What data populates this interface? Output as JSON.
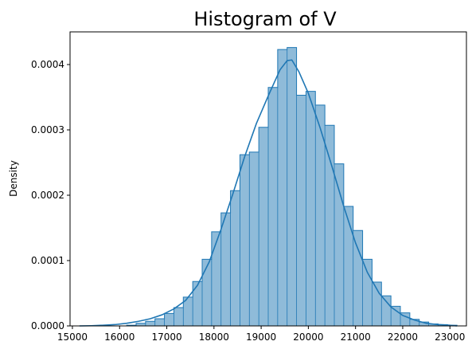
{
  "chart_data": {
    "type": "bar",
    "title": "Histogram of V",
    "xlabel": "",
    "ylabel": "Density",
    "xlim": [
      14950,
      23350
    ],
    "ylim": [
      0,
      0.00045
    ],
    "x_ticks": [
      15000,
      16000,
      17000,
      18000,
      19000,
      20000,
      21000,
      22000,
      23000
    ],
    "x_tick_labels": [
      "15000",
      "16000",
      "17000",
      "18000",
      "19000",
      "20000",
      "21000",
      "22000",
      "23000"
    ],
    "y_ticks": [
      0,
      0.0001,
      0.0002,
      0.0003,
      0.0004
    ],
    "y_tick_labels": [
      "0.0000",
      "0.0001",
      "0.0002",
      "0.0003",
      "0.0004"
    ],
    "grid": false,
    "legend": "none",
    "colors": {
      "bar_fill": "#1f77b4",
      "bar_fill_opacity": 0.5,
      "line": "#1f77b4"
    },
    "bins": {
      "edges": [
        15150,
        15350,
        15550,
        15750,
        15950,
        16150,
        16350,
        16550,
        16750,
        16950,
        17150,
        17350,
        17550,
        17750,
        17950,
        18150,
        18350,
        18550,
        18750,
        18950,
        19150,
        19350,
        19550,
        19750,
        19950,
        20150,
        20350,
        20550,
        20750,
        20950,
        21150,
        21350,
        21550,
        21750,
        21950,
        22150,
        22350,
        22550,
        22750,
        22950,
        23150
      ],
      "density": [
        0.0,
        0.0,
        0.0,
        0.0,
        0.0,
        1e-06,
        4e-06,
        7e-06,
        1.1e-05,
        1.9e-05,
        2.8e-05,
        4.4e-05,
        6.8e-05,
        0.000102,
        0.000144,
        0.000173,
        0.000207,
        0.000262,
        0.000266,
        0.000304,
        0.000365,
        0.000423,
        0.000426,
        0.000353,
        0.000359,
        0.000338,
        0.000307,
        0.000248,
        0.000183,
        0.000146,
        0.000102,
        6.7e-05,
        4.6e-05,
        3e-05,
        2e-05,
        1e-05,
        6e-06,
        3e-06,
        2e-06,
        1e-06
      ]
    },
    "kde": {
      "x": [
        15150,
        15400,
        15650,
        15900,
        16150,
        16400,
        16650,
        16900,
        17150,
        17400,
        17650,
        17900,
        18150,
        18400,
        18650,
        18900,
        19150,
        19400,
        19550,
        19650,
        19800,
        20000,
        20250,
        20500,
        20750,
        21000,
        21250,
        21500,
        21750,
        22000,
        22250,
        22500,
        22750,
        23000,
        23150
      ],
      "y": [
        0.0,
        3e-07,
        1e-06,
        2e-06,
        4e-06,
        7e-06,
        1.1e-05,
        1.7e-05,
        2.6e-05,
        3.9e-05,
        6.2e-05,
        9.8e-05,
        0.000148,
        0.000202,
        0.000259,
        0.00031,
        0.000352,
        0.000392,
        0.000406,
        0.000407,
        0.000389,
        0.000356,
        0.000303,
        0.000244,
        0.000183,
        0.000127,
        8.2e-05,
        5e-05,
        2.9e-05,
        1.6e-05,
        9e-06,
        4e-06,
        2e-06,
        1e-06,
        0.0
      ]
    }
  }
}
